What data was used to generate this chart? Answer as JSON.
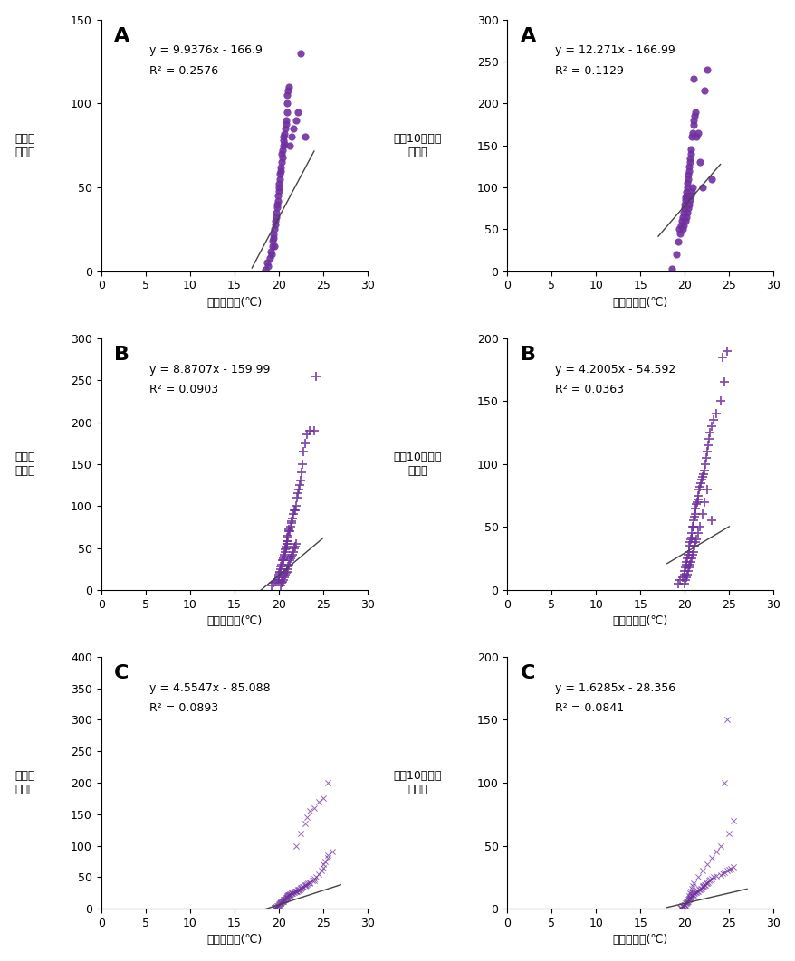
{
  "panels": [
    {
      "label": "A",
      "row": 0,
      "col": 0,
      "equation": "y = 9.9376x - 166.9",
      "r2": "R² = 0.2576",
      "slope": 9.9376,
      "intercept": -166.9,
      "marker": "o",
      "color": "#7030A0",
      "xlim": [
        0,
        30
      ],
      "ylim": [
        0,
        150
      ],
      "xticks": [
        0,
        5,
        10,
        15,
        20,
        25,
        30
      ],
      "yticks": [
        0,
        50,
        100,
        150
      ],
      "ylabel": "연평균\n발생수",
      "xlabel": "일최저기온(℃)",
      "trend_xmin": 17.0,
      "trend_xmax": 24.0,
      "x_data": [
        18.5,
        18.7,
        18.8,
        19.0,
        19.1,
        19.2,
        19.3,
        19.3,
        19.4,
        19.4,
        19.5,
        19.5,
        19.6,
        19.6,
        19.7,
        19.7,
        19.8,
        19.8,
        19.9,
        19.9,
        20.0,
        20.0,
        20.0,
        20.1,
        20.1,
        20.2,
        20.2,
        20.3,
        20.3,
        20.4,
        20.4,
        20.5,
        20.5,
        20.5,
        20.6,
        20.6,
        20.7,
        20.8,
        20.8,
        20.9,
        21.0,
        21.0,
        21.1,
        21.2,
        21.3,
        21.5,
        21.7,
        22.0,
        22.2,
        22.5,
        23.0
      ],
      "y_data": [
        1,
        5,
        3,
        8,
        12,
        10,
        15,
        18,
        20,
        22,
        15,
        25,
        30,
        28,
        35,
        32,
        40,
        38,
        42,
        45,
        48,
        50,
        52,
        55,
        58,
        60,
        62,
        65,
        70,
        68,
        72,
        75,
        78,
        80,
        76,
        82,
        85,
        90,
        88,
        95,
        100,
        105,
        108,
        110,
        75,
        80,
        85,
        90,
        95,
        130,
        80
      ]
    },
    {
      "label": "A",
      "row": 0,
      "col": 1,
      "equation": "y = 12.271x - 166.99",
      "r2": "R² = 0.1129",
      "slope": 12.271,
      "intercept": -166.99,
      "marker": "o",
      "color": "#7030A0",
      "xlim": [
        0,
        30
      ],
      "ylim": [
        0,
        300
      ],
      "xticks": [
        0,
        5,
        10,
        15,
        20,
        25,
        30
      ],
      "yticks": [
        0,
        50,
        100,
        150,
        200,
        250,
        300
      ],
      "ylabel": "인구10만명당\n발생률",
      "xlabel": "일최저기온(℃)",
      "trend_xmin": 17.0,
      "trend_xmax": 24.0,
      "x_data": [
        18.5,
        19.0,
        19.2,
        19.3,
        19.5,
        19.6,
        19.7,
        19.8,
        19.9,
        20.0,
        20.0,
        20.1,
        20.1,
        20.2,
        20.2,
        20.3,
        20.3,
        20.4,
        20.4,
        20.5,
        20.5,
        20.6,
        20.6,
        20.7,
        20.7,
        20.8,
        20.9,
        21.0,
        21.0,
        21.1,
        21.2,
        21.3,
        21.5,
        21.7,
        22.0,
        22.2,
        22.5,
        23.0,
        19.8,
        19.9,
        20.1,
        20.2,
        20.3,
        20.4,
        20.5,
        20.6,
        20.7,
        20.8,
        20.9,
        21.0
      ],
      "y_data": [
        3,
        20,
        35,
        50,
        45,
        55,
        60,
        65,
        70,
        80,
        75,
        85,
        88,
        90,
        95,
        100,
        105,
        110,
        115,
        120,
        125,
        130,
        135,
        140,
        145,
        160,
        165,
        175,
        180,
        185,
        190,
        160,
        165,
        130,
        100,
        215,
        240,
        110,
        50,
        55,
        60,
        65,
        70,
        75,
        80,
        85,
        90,
        95,
        100,
        230
      ]
    },
    {
      "label": "B",
      "row": 1,
      "col": 0,
      "equation": "y = 8.8707x - 159.99",
      "r2": "R² = 0.0903",
      "slope": 8.8707,
      "intercept": -159.99,
      "marker": "+",
      "color": "#7030A0",
      "xlim": [
        0,
        30
      ],
      "ylim": [
        0,
        300
      ],
      "xticks": [
        0,
        5,
        10,
        15,
        20,
        25,
        30
      ],
      "yticks": [
        0,
        50,
        100,
        150,
        200,
        250,
        300
      ],
      "ylabel": "연평균\n발생수",
      "xlabel": "일최저기온(℃)",
      "trend_xmin": 18.0,
      "trend_xmax": 25.0,
      "x_data": [
        19.2,
        19.4,
        19.6,
        19.8,
        20.0,
        20.0,
        20.0,
        20.1,
        20.1,
        20.2,
        20.2,
        20.3,
        20.4,
        20.5,
        20.5,
        20.6,
        20.6,
        20.7,
        20.7,
        20.8,
        20.8,
        20.9,
        20.9,
        21.0,
        21.0,
        21.0,
        21.1,
        21.2,
        21.2,
        21.3,
        21.4,
        21.5,
        21.5,
        21.6,
        21.7,
        21.8,
        21.9,
        22.0,
        22.1,
        22.2,
        22.3,
        22.4,
        22.5,
        22.6,
        22.7,
        22.8,
        23.0,
        23.2,
        23.5,
        24.0,
        24.2,
        20.2,
        20.3,
        20.4,
        20.5,
        20.6,
        20.7,
        20.8,
        20.9,
        21.0,
        21.1,
        21.2,
        21.3,
        21.4,
        21.5,
        21.6,
        21.7,
        21.8,
        21.9,
        22.0
      ],
      "y_data": [
        5,
        8,
        10,
        12,
        12,
        15,
        18,
        20,
        22,
        25,
        28,
        30,
        35,
        35,
        38,
        40,
        42,
        45,
        48,
        50,
        52,
        55,
        58,
        55,
        58,
        62,
        65,
        70,
        72,
        70,
        75,
        80,
        82,
        85,
        90,
        95,
        95,
        100,
        110,
        115,
        120,
        125,
        130,
        140,
        150,
        165,
        175,
        185,
        190,
        190,
        255,
        5,
        8,
        10,
        12,
        15,
        18,
        20,
        22,
        25,
        28,
        30,
        35,
        38,
        40,
        42,
        45,
        50,
        52,
        55
      ]
    },
    {
      "label": "B",
      "row": 1,
      "col": 1,
      "equation": "y = 4.2005x - 54.592",
      "r2": "R² = 0.0363",
      "slope": 4.2005,
      "intercept": -54.592,
      "marker": "+",
      "color": "#7030A0",
      "xlim": [
        0,
        30
      ],
      "ylim": [
        0,
        200
      ],
      "xticks": [
        0,
        5,
        10,
        15,
        20,
        25,
        30
      ],
      "yticks": [
        0,
        50,
        100,
        150,
        200
      ],
      "ylabel": "인구10만명당\n발생률",
      "xlabel": "일최저기온(℃)",
      "trend_xmin": 18.0,
      "trend_xmax": 25.0,
      "x_data": [
        19.2,
        19.5,
        19.8,
        20.0,
        20.0,
        20.1,
        20.2,
        20.2,
        20.3,
        20.4,
        20.5,
        20.5,
        20.6,
        20.7,
        20.8,
        20.8,
        20.9,
        21.0,
        21.0,
        21.1,
        21.2,
        21.2,
        21.3,
        21.4,
        21.5,
        21.5,
        21.6,
        21.7,
        21.8,
        21.9,
        22.0,
        22.1,
        22.2,
        22.3,
        22.4,
        22.5,
        22.6,
        22.7,
        22.8,
        23.0,
        23.2,
        23.5,
        24.0,
        24.2,
        20.0,
        20.1,
        20.2,
        20.3,
        20.4,
        20.5,
        20.6,
        20.7,
        20.8,
        20.9,
        21.0,
        21.1,
        21.2,
        21.3,
        21.5,
        21.7,
        22.0,
        22.2,
        22.5,
        23.0,
        24.5,
        24.8
      ],
      "y_data": [
        5,
        8,
        10,
        12,
        15,
        18,
        20,
        22,
        25,
        28,
        30,
        35,
        38,
        40,
        42,
        45,
        50,
        50,
        55,
        58,
        60,
        65,
        68,
        70,
        72,
        75,
        80,
        82,
        85,
        88,
        90,
        92,
        95,
        100,
        105,
        110,
        115,
        120,
        125,
        130,
        135,
        140,
        150,
        185,
        5,
        8,
        10,
        12,
        15,
        18,
        20,
        22,
        25,
        28,
        30,
        35,
        38,
        40,
        45,
        50,
        60,
        70,
        80,
        55,
        165,
        190
      ]
    },
    {
      "label": "C",
      "row": 2,
      "col": 0,
      "equation": "y = 4.5547x - 85.088",
      "r2": "R² = 0.0893",
      "slope": 4.5547,
      "intercept": -85.088,
      "marker": "x",
      "color": "#7030A0",
      "xlim": [
        0,
        30
      ],
      "ylim": [
        0,
        400
      ],
      "xticks": [
        0,
        5,
        10,
        15,
        20,
        25,
        30
      ],
      "yticks": [
        0,
        50,
        100,
        150,
        200,
        250,
        300,
        350,
        400
      ],
      "ylabel": "연평균\n발생수",
      "xlabel": "일최저기온(℃)",
      "trend_xmin": 18.0,
      "trend_xmax": 27.0,
      "x_data": [
        19.5,
        19.5,
        19.6,
        19.7,
        19.8,
        19.9,
        20.0,
        20.0,
        20.0,
        20.1,
        20.1,
        20.2,
        20.2,
        20.2,
        20.3,
        20.3,
        20.4,
        20.4,
        20.5,
        20.5,
        20.5,
        20.6,
        20.6,
        20.7,
        20.7,
        20.8,
        20.8,
        20.9,
        20.9,
        21.0,
        21.0,
        21.0,
        21.1,
        21.1,
        21.2,
        21.2,
        21.3,
        21.3,
        21.4,
        21.5,
        21.5,
        21.6,
        21.7,
        21.8,
        21.9,
        22.0,
        22.0,
        22.1,
        22.2,
        22.2,
        22.3,
        22.4,
        22.5,
        22.5,
        22.6,
        22.7,
        22.8,
        23.0,
        23.0,
        23.1,
        23.2,
        23.3,
        23.5,
        23.5,
        23.8,
        24.0,
        24.0,
        24.2,
        24.5,
        24.8,
        25.0,
        25.0,
        25.2,
        25.5,
        25.5,
        26.0,
        22.0,
        22.5,
        23.0,
        23.2,
        23.5,
        24.0,
        24.5,
        25.0,
        25.5
      ],
      "y_data": [
        1,
        2,
        3,
        3,
        4,
        4,
        5,
        6,
        7,
        7,
        8,
        8,
        9,
        10,
        10,
        11,
        11,
        12,
        12,
        13,
        14,
        14,
        15,
        15,
        16,
        16,
        17,
        17,
        18,
        18,
        19,
        20,
        20,
        21,
        21,
        22,
        22,
        23,
        23,
        24,
        25,
        25,
        26,
        26,
        27,
        27,
        28,
        28,
        29,
        30,
        30,
        31,
        32,
        33,
        33,
        34,
        35,
        36,
        37,
        38,
        39,
        40,
        40,
        42,
        44,
        45,
        47,
        50,
        55,
        60,
        65,
        70,
        75,
        80,
        85,
        90,
        100,
        120,
        135,
        145,
        155,
        160,
        170,
        175,
        200
      ]
    },
    {
      "label": "C",
      "row": 2,
      "col": 1,
      "equation": "y = 1.6285x - 28.356",
      "r2": "R² = 0.0841",
      "slope": 1.6285,
      "intercept": -28.356,
      "marker": "x",
      "color": "#7030A0",
      "xlim": [
        0,
        30
      ],
      "ylim": [
        0,
        200
      ],
      "xticks": [
        0,
        5,
        10,
        15,
        20,
        25,
        30
      ],
      "yticks": [
        0,
        50,
        100,
        150,
        200
      ],
      "ylabel": "인구10만명당\n발생률",
      "xlabel": "일최저기온(℃)",
      "trend_xmin": 18.0,
      "trend_xmax": 27.0,
      "x_data": [
        19.5,
        19.6,
        19.7,
        19.8,
        19.9,
        20.0,
        20.0,
        20.1,
        20.1,
        20.2,
        20.2,
        20.3,
        20.3,
        20.4,
        20.4,
        20.5,
        20.5,
        20.6,
        20.6,
        20.7,
        20.7,
        20.8,
        20.9,
        21.0,
        21.0,
        21.1,
        21.2,
        21.3,
        21.4,
        21.5,
        21.6,
        21.7,
        21.8,
        21.9,
        22.0,
        22.0,
        22.1,
        22.2,
        22.3,
        22.4,
        22.5,
        22.6,
        22.7,
        22.8,
        23.0,
        23.2,
        23.5,
        24.0,
        24.2,
        24.5,
        24.8,
        25.0,
        25.2,
        25.5,
        20.5,
        20.6,
        20.7,
        20.8,
        20.9,
        21.0,
        21.5,
        22.0,
        22.5,
        23.0,
        23.5,
        24.0,
        25.0,
        25.5,
        24.5,
        24.8
      ],
      "y_data": [
        1,
        1,
        2,
        2,
        2,
        3,
        3,
        3,
        4,
        4,
        5,
        5,
        6,
        6,
        7,
        7,
        8,
        8,
        9,
        9,
        10,
        10,
        11,
        11,
        12,
        12,
        13,
        13,
        14,
        14,
        15,
        15,
        16,
        16,
        17,
        18,
        18,
        19,
        19,
        20,
        20,
        21,
        22,
        23,
        24,
        25,
        26,
        27,
        28,
        29,
        30,
        31,
        32,
        33,
        10,
        12,
        14,
        16,
        18,
        20,
        25,
        30,
        35,
        40,
        45,
        50,
        60,
        70,
        100,
        150
      ]
    }
  ],
  "figure_bg": "#ffffff",
  "text_color": "#000000",
  "marker_size_circle": 35,
  "marker_size_plus": 45,
  "marker_size_x": 20,
  "label_fontsize": 16,
  "eq_fontsize": 9,
  "tick_fontsize": 9,
  "axis_label_fontsize": 9,
  "trendline_color": "#444444"
}
